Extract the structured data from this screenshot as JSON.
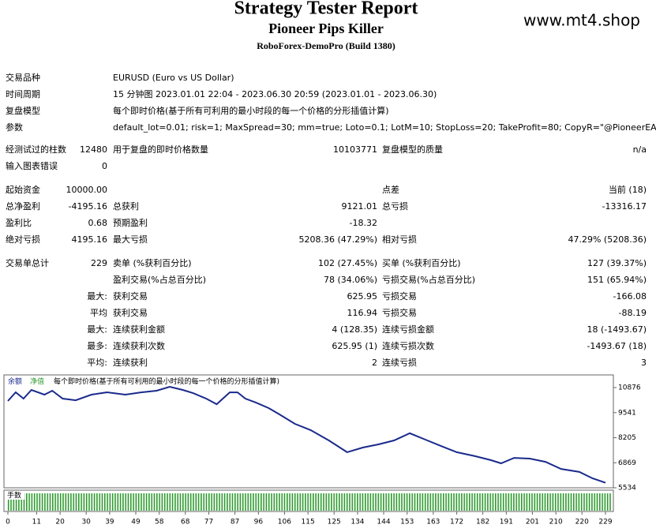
{
  "header": {
    "title": "Strategy Tester Report",
    "subtitle": "Pioneer Pips Killer",
    "server": "RoboForex-DemoPro (Build 1380)",
    "site": "www.mt4.shop"
  },
  "info": [
    {
      "label": "交易品种",
      "value": "EURUSD (Euro vs US Dollar)"
    },
    {
      "label": "时间周期",
      "value": "15 分钟图 2023.01.01 22:04 - 2023.06.30 20:59 (2023.01.01 - 2023.06.30)"
    },
    {
      "label": "复盘模型",
      "value": "每个即时价格(基于所有可利用的最小时段的每一个价格的分形插值计算)"
    },
    {
      "label": "参数",
      "value": "default_lot=0.01; risk=1; MaxSpread=30; mm=true; Loto=0.1; LotM=10; StopLoss=20; TakeProfit=80; CopyR=\"@PioneerEAs - Telegram\";"
    }
  ],
  "rows": [
    {
      "a": "经测试过的柱数",
      "av": "12480",
      "b": "用于复盘的即时价格数量",
      "bv": "10103771",
      "c": "复盘模型的质量",
      "cv": "n/a"
    },
    {
      "a": "输入图表错误",
      "av": "0"
    },
    {
      "a": "起始资金",
      "av": "10000.00",
      "c": "点差",
      "cv": "当前 (18)"
    },
    {
      "a": "总净盈利",
      "av": "-4195.16",
      "b": "总获利",
      "bv": "9121.01",
      "c": "总亏损",
      "cv": "-13316.17"
    },
    {
      "a": "盈利比",
      "av": "0.68",
      "b": "预期盈利",
      "bv": "-18.32"
    },
    {
      "a": "绝对亏损",
      "av": "4195.16",
      "b": "最大亏损",
      "bv": "5208.36 (47.29%)",
      "c": "相对亏损",
      "cv": "47.29% (5208.36)"
    },
    {
      "a": "交易单总计",
      "av": "229",
      "b": "卖单 (%获利百分比)",
      "bv": "102 (27.45%)",
      "c": "买单 (%获利百分比)",
      "cv": "127 (39.37%)"
    },
    {
      "b": "盈利交易(%占总百分比)",
      "bv": "78 (34.06%)",
      "c": "亏损交易(%占总百分比)",
      "cv": "151 (65.94%)"
    },
    {
      "av": "最大:",
      "b": "获利交易",
      "bv": "625.95",
      "c": "亏损交易",
      "cv": "-166.08"
    },
    {
      "av": "平均",
      "b": "获利交易",
      "bv": "116.94",
      "c": "亏损交易",
      "cv": "-88.19"
    },
    {
      "av": "最大:",
      "b": "连续获利金额",
      "bv": "4 (128.35)",
      "c": "连续亏损金额",
      "cv": "18 (-1493.67)"
    },
    {
      "av": "最多:",
      "b": "连续获利次数",
      "bv": "625.95 (1)",
      "c": "连续亏损次数",
      "cv": "-1493.67 (18)"
    },
    {
      "av": "平均:",
      "b": "连续获利",
      "bv": "2",
      "c": "连续亏损",
      "cv": "3"
    }
  ],
  "chart_data": {
    "type": "line",
    "subtitle": "每个即时价格(基于所有可利用的最小时段的每一个价格的分形插值计算)",
    "equity_name": "净值",
    "equity_color": "#2e9a2e",
    "volume_label": "手数",
    "volume_color": "#2e9a2e",
    "x": [
      0,
      3,
      6,
      9,
      14,
      17,
      21,
      26,
      32,
      38,
      45,
      51,
      57,
      62,
      67,
      71,
      76,
      80,
      85,
      88,
      91,
      95,
      100,
      104,
      110,
      116,
      123,
      130,
      136,
      142,
      148,
      154,
      160,
      166,
      172,
      179,
      185,
      189,
      194,
      200,
      206,
      212,
      219,
      224,
      229
    ],
    "series": [
      {
        "name": "余额",
        "color": "#1a2a8c",
        "values": [
          10162,
          10624,
          10290,
          10750,
          10500,
          10710,
          10290,
          10200,
          10500,
          10624,
          10500,
          10620,
          10710,
          10920,
          10750,
          10580,
          10290,
          9990,
          10620,
          10620,
          10290,
          10080,
          9780,
          9450,
          8940,
          8610,
          8060,
          7430,
          7680,
          7850,
          8060,
          8440,
          8100,
          7760,
          7430,
          7220,
          7010,
          6840,
          7130,
          7090,
          6920,
          6540,
          6380,
          6040,
          5804.84
        ]
      }
    ],
    "xlim": [
      0,
      229
    ],
    "xticks": [
      0,
      11,
      20,
      30,
      39,
      49,
      58,
      68,
      77,
      87,
      96,
      106,
      115,
      125,
      134,
      144,
      153,
      163,
      172,
      182,
      191,
      201,
      210,
      220,
      229
    ],
    "ylim": [
      5450,
      11550
    ],
    "yticks": [
      10876,
      9541,
      8205,
      6869,
      5534
    ]
  }
}
